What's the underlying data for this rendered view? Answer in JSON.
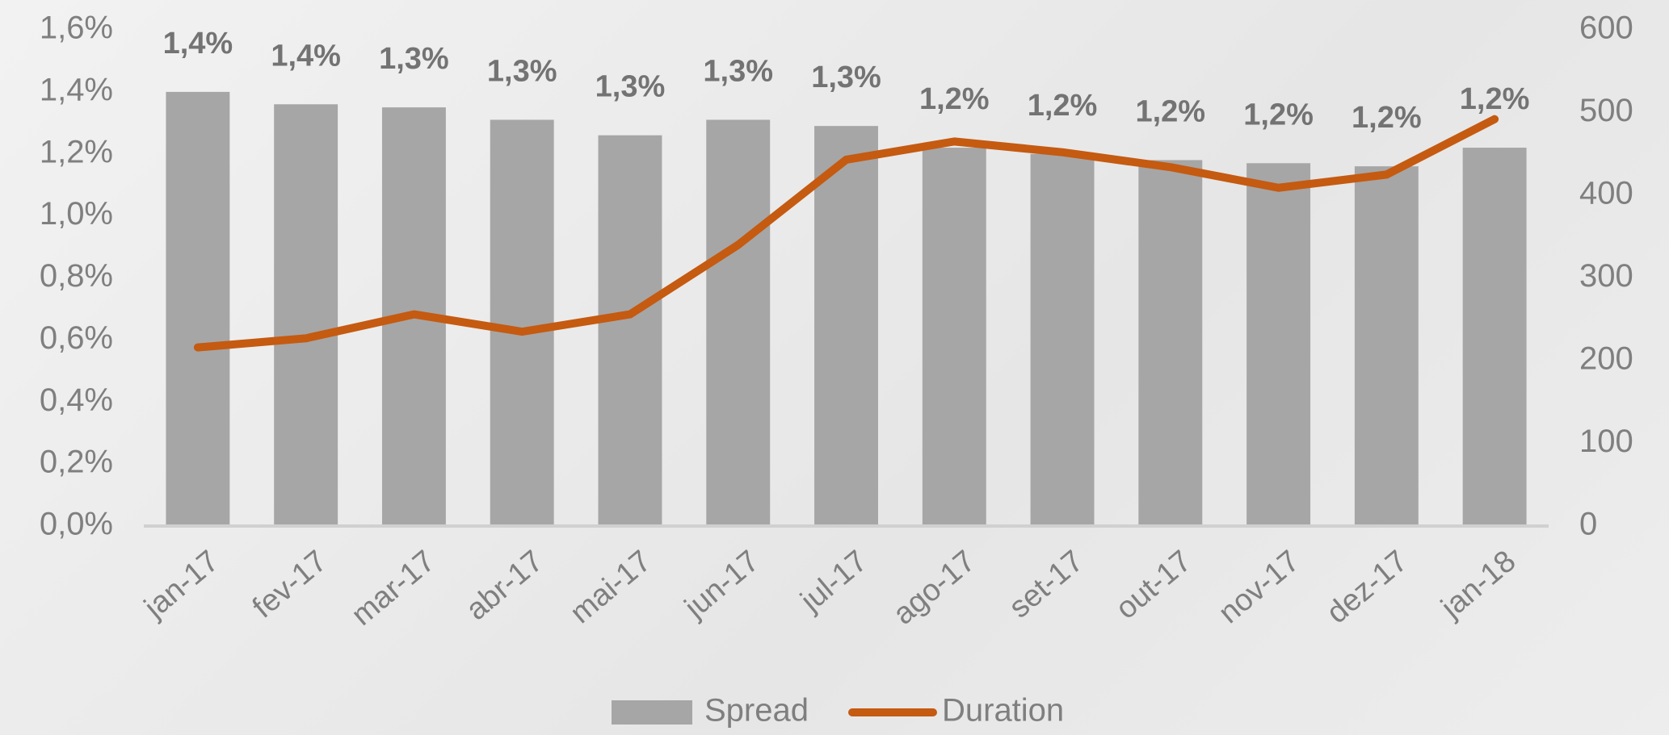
{
  "chart_data": {
    "type": "bar_line",
    "categories": [
      "jan-17",
      "fev-17",
      "mar-17",
      "abr-17",
      "mai-17",
      "jun-17",
      "jul-17",
      "ago-17",
      "set-17",
      "out-17",
      "nov-17",
      "dez-17",
      "jan-18"
    ],
    "series": [
      {
        "name": "Spread",
        "type": "bar",
        "color": "#a6a6a6",
        "axis": "y",
        "values": [
          1.4,
          1.36,
          1.35,
          1.31,
          1.26,
          1.31,
          1.29,
          1.22,
          1.2,
          1.18,
          1.17,
          1.16,
          1.22
        ],
        "value_labels": [
          "1,4%",
          "1,4%",
          "1,3%",
          "1,3%",
          "1,3%",
          "1,3%",
          "1,3%",
          "1,2%",
          "1,2%",
          "1,2%",
          "1,2%",
          "1,2%",
          "1,2%"
        ]
      },
      {
        "name": "Duration",
        "type": "line",
        "color": "#c55a11",
        "axis": "y2",
        "values": [
          216,
          227,
          256,
          235,
          256,
          340,
          443,
          465,
          452,
          434,
          409,
          425,
          492
        ]
      }
    ],
    "ylim": [
      0,
      1.6
    ],
    "yticks": [
      {
        "value": 0,
        "label": "0,0%"
      },
      {
        "value": 0.2,
        "label": "0,2%"
      },
      {
        "value": 0.4,
        "label": "0,4%"
      },
      {
        "value": 0.6,
        "label": "0,6%"
      },
      {
        "value": 0.8,
        "label": "0,8%"
      },
      {
        "value": 1.0,
        "label": "1,0%"
      },
      {
        "value": 1.2,
        "label": "1,2%"
      },
      {
        "value": 1.4,
        "label": "1,4%"
      },
      {
        "value": 1.6,
        "label": "1,6%"
      }
    ],
    "y2lim": [
      0,
      600
    ],
    "y2ticks": [
      0,
      100,
      200,
      300,
      400,
      500,
      600
    ],
    "legend": "bottom"
  }
}
